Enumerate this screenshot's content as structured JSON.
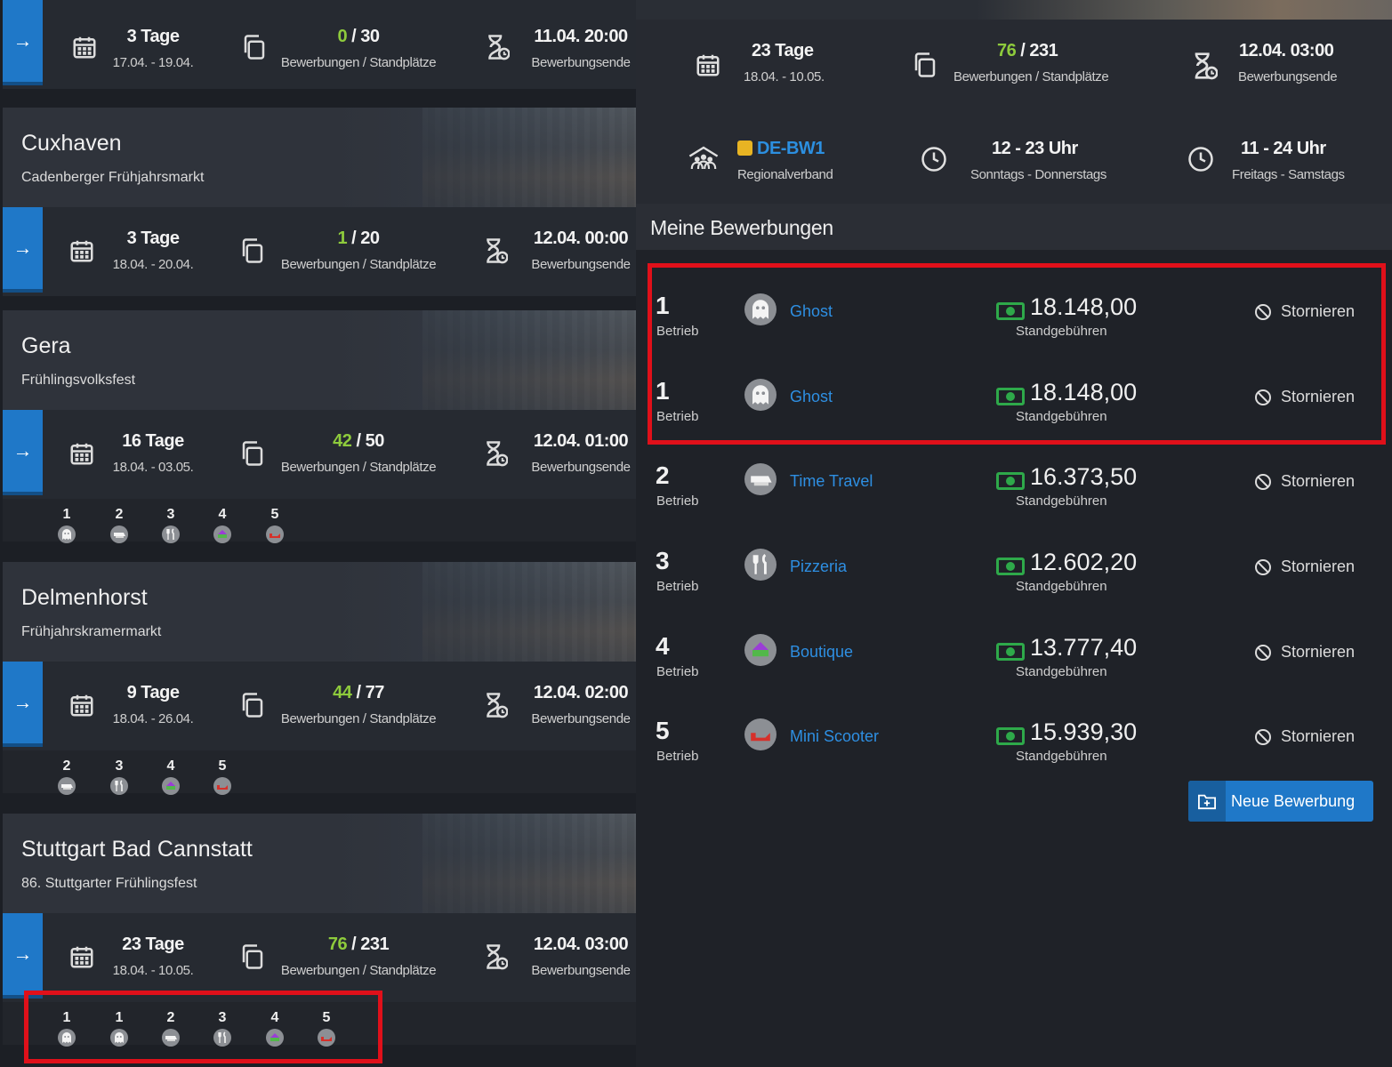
{
  "left": {
    "top_card": {
      "days": "3 Tage",
      "dates": "17.04. - 19.04.",
      "applied": "0",
      "slots": " / 30",
      "apps_label": "Bewerbungen / Standplätze",
      "deadline": "11.04. 20:00",
      "deadline_label": "Bewerbungsende"
    },
    "markets": [
      {
        "city": "Cuxhaven",
        "name": "Cadenberger Frühjahrsmarkt",
        "days": "3 Tage",
        "dates": "18.04. - 20.04.",
        "applied": "1",
        "slots": " / 20",
        "apps_label": "Bewerbungen / Standplätze",
        "deadline": "12.04. 00:00",
        "deadline_label": "Bewerbungsende",
        "chips": []
      },
      {
        "city": "Gera",
        "name": "Frühlingsvolksfest",
        "days": "16 Tage",
        "dates": "18.04. - 03.05.",
        "applied": "42",
        "slots": " / 50",
        "apps_label": "Bewerbungen / Standplätze",
        "deadline": "12.04. 01:00",
        "deadline_label": "Bewerbungsende",
        "chips": [
          {
            "n": "1",
            "icon": "ghost-icon"
          },
          {
            "n": "2",
            "icon": "time-travel-icon"
          },
          {
            "n": "3",
            "icon": "fork-knife-icon"
          },
          {
            "n": "4",
            "icon": "boutique-icon"
          },
          {
            "n": "5",
            "icon": "mini-scooter-icon"
          }
        ]
      },
      {
        "city": "Delmenhorst",
        "name": "Frühjahrskramermarkt",
        "days": "9 Tage",
        "dates": "18.04. - 26.04.",
        "applied": "44",
        "slots": " / 77",
        "apps_label": "Bewerbungen / Standplätze",
        "deadline": "12.04. 02:00",
        "deadline_label": "Bewerbungsende",
        "chips": [
          {
            "n": "2",
            "icon": "time-travel-icon"
          },
          {
            "n": "3",
            "icon": "fork-knife-icon"
          },
          {
            "n": "4",
            "icon": "boutique-icon"
          },
          {
            "n": "5",
            "icon": "mini-scooter-icon"
          }
        ]
      },
      {
        "city": "Stuttgart Bad Cannstatt",
        "name": "86. Stuttgarter Frühlingsfest",
        "days": "23 Tage",
        "dates": "18.04. - 10.05.",
        "applied": "76",
        "slots": " / 231",
        "apps_label": "Bewerbungen / Standplätze",
        "deadline": "12.04. 03:00",
        "deadline_label": "Bewerbungsende",
        "chips": [
          {
            "n": "1",
            "icon": "ghost-icon"
          },
          {
            "n": "1",
            "icon": "ghost-icon"
          },
          {
            "n": "2",
            "icon": "time-travel-icon"
          },
          {
            "n": "3",
            "icon": "fork-knife-icon"
          },
          {
            "n": "4",
            "icon": "boutique-icon"
          },
          {
            "n": "5",
            "icon": "mini-scooter-icon"
          }
        ]
      }
    ]
  },
  "right": {
    "info": {
      "days": "23 Tage",
      "dates": "18.04. - 10.05.",
      "applied": "76",
      "slots": " / 231",
      "apps_label": "Bewerbungen / Standplätze",
      "deadline": "12.04. 03:00",
      "deadline_label": "Bewerbungsende",
      "region": "DE-BW1",
      "region_label": "Regionalverband",
      "hours_1": "12 - 23 Uhr",
      "hours_1_label": "Sonntags - Donnerstags",
      "hours_2": "11 - 24 Uhr",
      "hours_2_label": "Freitags - Samstags"
    },
    "section_title": "Meine Bewerbungen",
    "rank_label": "Betrieb",
    "fee_label": "Standgebühren",
    "cancel_label": "Stornieren",
    "applications": [
      {
        "rank": "1",
        "name": "Ghost",
        "price": "18.148,00",
        "icon": "ghost-icon"
      },
      {
        "rank": "1",
        "name": "Ghost",
        "price": "18.148,00",
        "icon": "ghost-icon"
      },
      {
        "rank": "2",
        "name": "Time Travel",
        "price": "16.373,50",
        "icon": "time-travel-icon"
      },
      {
        "rank": "3",
        "name": "Pizzeria",
        "price": "12.602,20",
        "icon": "fork-knife-icon"
      },
      {
        "rank": "4",
        "name": "Boutique",
        "price": "13.777,40",
        "icon": "boutique-icon"
      },
      {
        "rank": "5",
        "name": "Mini Scooter",
        "price": "15.939,30",
        "icon": "mini-scooter-icon"
      }
    ],
    "new_button": "Neue Bewerbung"
  },
  "colors": {
    "accent": "#1f78c8",
    "green": "#8ecb3c",
    "money": "#2ea94a",
    "link": "#2e8fe2",
    "highlight": "#e0101a"
  }
}
